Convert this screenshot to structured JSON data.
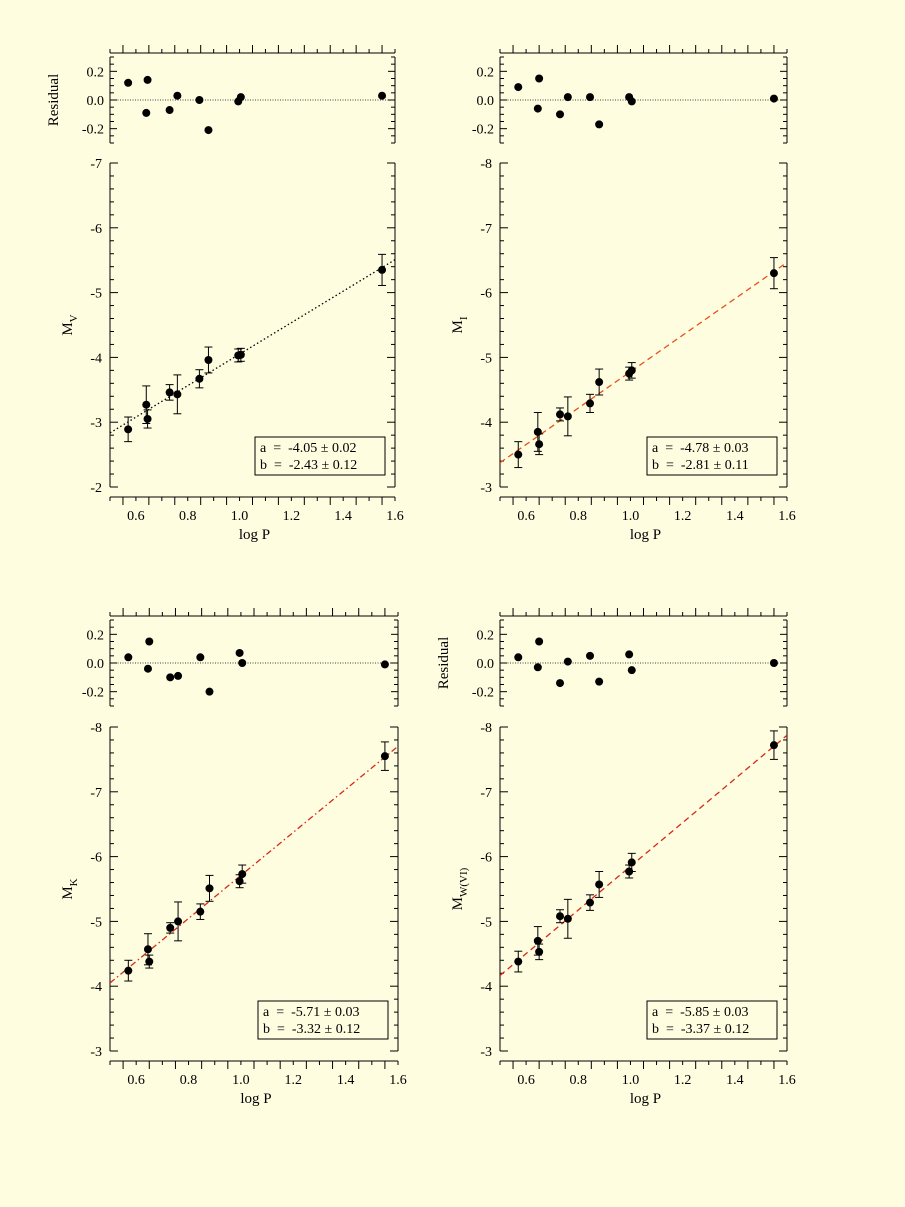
{
  "page": {
    "background": "#fefde0"
  },
  "chart_data": [
    {
      "id": "V",
      "type": "scatter",
      "xlabel": "log P",
      "ylabel_main": "M",
      "ylabel_sub": "V",
      "residual_ylabel": "Residual",
      "xlim": [
        0.5,
        1.6
      ],
      "ylim": [
        -2,
        -7
      ],
      "resid_ylim": [
        -0.3,
        0.3
      ],
      "x_ticks": [
        "0.6",
        "0.8",
        "1.0",
        "1.2",
        "1.4",
        "1.6"
      ],
      "y_ticks": [
        "-2",
        "-3",
        "-4",
        "-5",
        "-6",
        "-7"
      ],
      "resid_ticks": [
        "0.2",
        "0.0",
        "-0.2"
      ],
      "fit": {
        "a": -4.05,
        "b": -2.43,
        "style": "dotted",
        "color": "#000000"
      },
      "legend_lines": [
        "a  =  -4.05 ± 0.02",
        "b  =  -2.43 ± 0.12"
      ],
      "points": [
        {
          "x": 0.57,
          "y": -2.89,
          "err": 0.19
        },
        {
          "x": 0.64,
          "y": -3.27,
          "err": 0.29
        },
        {
          "x": 0.645,
          "y": -3.05,
          "err": 0.14
        },
        {
          "x": 0.73,
          "y": -3.46,
          "err": 0.12
        },
        {
          "x": 0.76,
          "y": -3.43,
          "err": 0.3
        },
        {
          "x": 0.845,
          "y": -3.67,
          "err": 0.14
        },
        {
          "x": 0.88,
          "y": -3.96,
          "err": 0.2
        },
        {
          "x": 0.995,
          "y": -4.03,
          "err": 0.1
        },
        {
          "x": 1.005,
          "y": -4.04,
          "err": 0.1
        },
        {
          "x": 1.55,
          "y": -5.35,
          "err": 0.24
        }
      ],
      "residuals": [
        {
          "x": 0.57,
          "y": 0.12
        },
        {
          "x": 0.64,
          "y": -0.09
        },
        {
          "x": 0.645,
          "y": 0.14
        },
        {
          "x": 0.73,
          "y": -0.07
        },
        {
          "x": 0.76,
          "y": 0.03
        },
        {
          "x": 0.845,
          "y": 0.0
        },
        {
          "x": 0.88,
          "y": -0.21
        },
        {
          "x": 0.995,
          "y": -0.01
        },
        {
          "x": 1.005,
          "y": 0.02
        },
        {
          "x": 1.55,
          "y": 0.03
        }
      ]
    },
    {
      "id": "I",
      "type": "scatter",
      "xlabel": "log P",
      "ylabel_main": "M",
      "ylabel_sub": "I",
      "residual_ylabel": "",
      "xlim": [
        0.5,
        1.6
      ],
      "ylim": [
        -3,
        -8
      ],
      "resid_ylim": [
        -0.3,
        0.3
      ],
      "x_ticks": [
        "0.6",
        "0.8",
        "1.0",
        "1.2",
        "1.4",
        "1.6"
      ],
      "y_ticks": [
        "-3",
        "-4",
        "-5",
        "-6",
        "-7",
        "-8"
      ],
      "resid_ticks": [
        "0.2",
        "0.0",
        "-0.2"
      ],
      "fit": {
        "a": -4.78,
        "b": -2.81,
        "style": "dashed",
        "color": "#e8501a"
      },
      "legend_lines": [
        "a  =  -4.78 ± 0.03",
        "b  =  -2.81 ± 0.11"
      ],
      "points": [
        {
          "x": 0.57,
          "y": -3.5,
          "err": 0.2
        },
        {
          "x": 0.645,
          "y": -3.85,
          "err": 0.3
        },
        {
          "x": 0.65,
          "y": -3.66,
          "err": 0.16
        },
        {
          "x": 0.73,
          "y": -4.12,
          "err": 0.1
        },
        {
          "x": 0.76,
          "y": -4.09,
          "err": 0.3
        },
        {
          "x": 0.845,
          "y": -4.29,
          "err": 0.14
        },
        {
          "x": 0.88,
          "y": -4.62,
          "err": 0.2
        },
        {
          "x": 0.995,
          "y": -4.75,
          "err": 0.1
        },
        {
          "x": 1.005,
          "y": -4.8,
          "err": 0.12
        },
        {
          "x": 1.55,
          "y": -6.3,
          "err": 0.24
        }
      ],
      "residuals": [
        {
          "x": 0.57,
          "y": 0.09
        },
        {
          "x": 0.645,
          "y": -0.06
        },
        {
          "x": 0.65,
          "y": 0.15
        },
        {
          "x": 0.73,
          "y": -0.1
        },
        {
          "x": 0.76,
          "y": 0.02
        },
        {
          "x": 0.845,
          "y": 0.02
        },
        {
          "x": 0.88,
          "y": -0.17
        },
        {
          "x": 0.995,
          "y": 0.02
        },
        {
          "x": 1.005,
          "y": -0.01
        },
        {
          "x": 1.55,
          "y": 0.01
        }
      ]
    },
    {
      "id": "K",
      "type": "scatter",
      "xlabel": "log P",
      "ylabel_main": "M",
      "ylabel_sub": "K",
      "residual_ylabel": "",
      "xlim": [
        0.5,
        1.6
      ],
      "ylim": [
        -3,
        -8
      ],
      "resid_ylim": [
        -0.3,
        0.3
      ],
      "x_ticks": [
        "0.6",
        "0.8",
        "1.0",
        "1.2",
        "1.4",
        "1.6"
      ],
      "y_ticks": [
        "-3",
        "-4",
        "-5",
        "-6",
        "-7",
        "-8"
      ],
      "resid_ticks": [
        "0.2",
        "0.0",
        "-0.2"
      ],
      "fit": {
        "a": -5.71,
        "b": -3.32,
        "style": "dashdot",
        "color": "#d8281a"
      },
      "legend_lines": [
        "a  =  -5.71 ± 0.03",
        "b  =  -3.32 ± 0.12"
      ],
      "points": [
        {
          "x": 0.57,
          "y": -4.24,
          "err": 0.16
        },
        {
          "x": 0.645,
          "y": -4.57,
          "err": 0.24
        },
        {
          "x": 0.65,
          "y": -4.38,
          "err": 0.1
        },
        {
          "x": 0.73,
          "y": -4.9,
          "err": 0.08
        },
        {
          "x": 0.76,
          "y": -5.0,
          "err": 0.3
        },
        {
          "x": 0.845,
          "y": -5.15,
          "err": 0.12
        },
        {
          "x": 0.88,
          "y": -5.51,
          "err": 0.2
        },
        {
          "x": 0.995,
          "y": -5.62,
          "err": 0.1
        },
        {
          "x": 1.005,
          "y": -5.73,
          "err": 0.14
        },
        {
          "x": 1.55,
          "y": -7.55,
          "err": 0.22
        }
      ],
      "residuals": [
        {
          "x": 0.57,
          "y": 0.04
        },
        {
          "x": 0.645,
          "y": -0.04
        },
        {
          "x": 0.65,
          "y": 0.15
        },
        {
          "x": 0.73,
          "y": -0.1
        },
        {
          "x": 0.76,
          "y": -0.09
        },
        {
          "x": 0.845,
          "y": 0.04
        },
        {
          "x": 0.88,
          "y": -0.2
        },
        {
          "x": 0.995,
          "y": 0.07
        },
        {
          "x": 1.005,
          "y": 0.0
        },
        {
          "x": 1.55,
          "y": -0.01
        }
      ]
    },
    {
      "id": "W",
      "type": "scatter",
      "xlabel": "log P",
      "ylabel_main": "M",
      "ylabel_sub": "W(VI)",
      "residual_ylabel": "Residual",
      "xlim": [
        0.5,
        1.6
      ],
      "ylim": [
        -3,
        -8
      ],
      "resid_ylim": [
        -0.3,
        0.3
      ],
      "x_ticks": [
        "0.6",
        "0.8",
        "1.0",
        "1.2",
        "1.4",
        "1.6"
      ],
      "y_ticks": [
        "-3",
        "-4",
        "-5",
        "-6",
        "-7",
        "-8"
      ],
      "resid_ticks": [
        "0.2",
        "0.0",
        "-0.2"
      ],
      "fit": {
        "a": -5.85,
        "b": -3.37,
        "style": "dashed",
        "color": "#d8281a"
      },
      "legend_lines": [
        "a  =  -5.85 ± 0.03",
        "b  =  -3.37 ± 0.12"
      ],
      "points": [
        {
          "x": 0.57,
          "y": -4.38,
          "err": 0.16
        },
        {
          "x": 0.645,
          "y": -4.7,
          "err": 0.22
        },
        {
          "x": 0.65,
          "y": -4.53,
          "err": 0.12
        },
        {
          "x": 0.73,
          "y": -5.08,
          "err": 0.1
        },
        {
          "x": 0.76,
          "y": -5.04,
          "err": 0.3
        },
        {
          "x": 0.845,
          "y": -5.29,
          "err": 0.12
        },
        {
          "x": 0.88,
          "y": -5.57,
          "err": 0.2
        },
        {
          "x": 0.995,
          "y": -5.77,
          "err": 0.1
        },
        {
          "x": 1.005,
          "y": -5.91,
          "err": 0.14
        },
        {
          "x": 1.55,
          "y": -7.72,
          "err": 0.22
        }
      ],
      "residuals": [
        {
          "x": 0.57,
          "y": 0.04
        },
        {
          "x": 0.645,
          "y": -0.03
        },
        {
          "x": 0.65,
          "y": 0.15
        },
        {
          "x": 0.73,
          "y": -0.14
        },
        {
          "x": 0.76,
          "y": 0.01
        },
        {
          "x": 0.845,
          "y": 0.05
        },
        {
          "x": 0.88,
          "y": -0.13
        },
        {
          "x": 0.995,
          "y": 0.06
        },
        {
          "x": 1.005,
          "y": -0.05
        },
        {
          "x": 1.55,
          "y": 0.0
        }
      ]
    }
  ]
}
